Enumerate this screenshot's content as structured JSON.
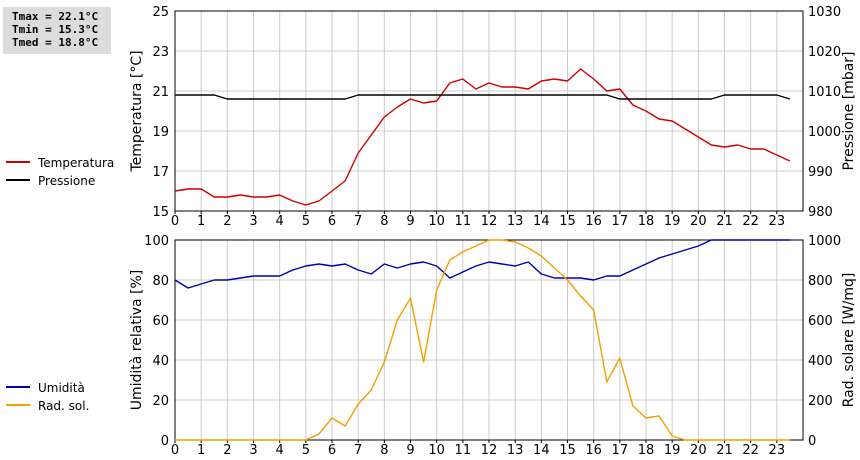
{
  "stats": {
    "tmax": "Tmax = 22.1°C",
    "tmin": "Tmin = 15.3°C",
    "tmed": "Tmed = 18.8°C"
  },
  "colors": {
    "temperature": "#cc0000",
    "pressure": "#000000",
    "humidity": "#0000aa",
    "solar": "#f0a000",
    "grid": "#cccccc"
  },
  "chart_data": [
    {
      "type": "line",
      "x_ticks": [
        "0",
        "1",
        "2",
        "3",
        "4",
        "5",
        "6",
        "7",
        "8",
        "9",
        "10",
        "11",
        "12",
        "13",
        "14",
        "15",
        "16",
        "17",
        "18",
        "19",
        "20",
        "21",
        "22",
        "23"
      ],
      "xlim": [
        0,
        24
      ],
      "ylabel_left": "Temperatura [°C]",
      "ylabel_right": "Pressione [mbar]",
      "ylim_left": [
        15,
        25
      ],
      "ylim_right": [
        980,
        1030
      ],
      "yticks_left": [
        "15",
        "17",
        "19",
        "21",
        "23",
        "25"
      ],
      "yticks_right": [
        "980",
        "990",
        "1000",
        "1010",
        "1020",
        "1030"
      ],
      "grid": true,
      "legend": "left",
      "series": [
        {
          "name": "Temperatura",
          "axis": "left",
          "x": [
            0,
            0.5,
            1,
            1.5,
            2,
            2.5,
            3,
            3.5,
            4,
            4.5,
            5,
            5.5,
            6,
            6.5,
            7,
            7.5,
            8,
            8.5,
            9,
            9.5,
            10,
            10.5,
            11,
            11.5,
            12,
            12.5,
            13,
            13.5,
            14,
            14.5,
            15,
            15.5,
            16,
            16.5,
            17,
            17.5,
            18,
            18.5,
            19,
            19.5,
            20,
            20.5,
            21,
            21.5,
            22,
            22.5,
            23,
            23.5
          ],
          "values": [
            16.0,
            16.1,
            16.1,
            15.7,
            15.7,
            15.8,
            15.7,
            15.7,
            15.8,
            15.5,
            15.3,
            15.5,
            16.0,
            16.5,
            17.9,
            18.8,
            19.7,
            20.2,
            20.6,
            20.4,
            20.5,
            21.4,
            21.6,
            21.1,
            21.4,
            21.2,
            21.2,
            21.1,
            21.5,
            21.6,
            21.5,
            22.1,
            21.6,
            21.0,
            21.1,
            20.3,
            20.0,
            19.6,
            19.5,
            19.1,
            18.7,
            18.3,
            18.2,
            18.3,
            18.1,
            18.1,
            17.8,
            17.5
          ]
        },
        {
          "name": "Pressione",
          "axis": "right",
          "x": [
            0,
            1.5,
            2,
            6.5,
            7,
            16.5,
            17,
            20.5,
            21,
            23,
            23.5
          ],
          "values": [
            1009,
            1009,
            1008,
            1008,
            1009,
            1009,
            1008,
            1008,
            1009,
            1009,
            1008
          ]
        }
      ]
    },
    {
      "type": "line",
      "x_ticks": [
        "0",
        "1",
        "2",
        "3",
        "4",
        "5",
        "6",
        "7",
        "8",
        "9",
        "10",
        "11",
        "12",
        "13",
        "14",
        "15",
        "16",
        "17",
        "18",
        "19",
        "20",
        "21",
        "22",
        "23"
      ],
      "xlim": [
        0,
        24
      ],
      "ylabel_left": "Umidità relativa [%]",
      "ylabel_right": "Rad. solare [W/mq]",
      "ylim_left": [
        0,
        100
      ],
      "ylim_right": [
        0,
        1000
      ],
      "yticks_left": [
        "0",
        "20",
        "40",
        "60",
        "80",
        "100"
      ],
      "yticks_right": [
        "0",
        "200",
        "400",
        "600",
        "800",
        "1000"
      ],
      "grid": true,
      "legend": "left",
      "series": [
        {
          "name": "Umidità",
          "axis": "left",
          "x": [
            0,
            0.5,
            1,
            1.5,
            2,
            2.5,
            3,
            3.5,
            4,
            4.5,
            5,
            5.5,
            6,
            6.5,
            7,
            7.5,
            8,
            8.5,
            9,
            9.5,
            10,
            10.5,
            11,
            11.5,
            12,
            12.5,
            13,
            13.5,
            14,
            14.5,
            15,
            15.5,
            16,
            16.5,
            17,
            17.5,
            18,
            18.5,
            19,
            19.5,
            20,
            20.5,
            21,
            21.5,
            22,
            22.5,
            23,
            23.5
          ],
          "values": [
            80,
            76,
            78,
            80,
            80,
            81,
            82,
            82,
            82,
            85,
            87,
            88,
            87,
            88,
            85,
            83,
            88,
            86,
            88,
            89,
            87,
            81,
            84,
            87,
            89,
            88,
            87,
            89,
            83,
            81,
            81,
            81,
            80,
            82,
            82,
            85,
            88,
            91,
            93,
            95,
            97,
            100,
            100,
            100,
            100,
            100,
            100,
            100
          ]
        },
        {
          "name": "Rad. sol.",
          "axis": "right",
          "x": [
            0,
            0.5,
            1,
            1.5,
            2,
            2.5,
            3,
            3.5,
            4,
            4.5,
            5,
            5.5,
            6,
            6.5,
            7,
            7.5,
            8,
            8.5,
            9,
            9.5,
            10,
            10.5,
            11,
            11.5,
            12,
            12.5,
            13,
            13.5,
            14,
            14.5,
            15,
            15.5,
            16,
            16.5,
            17,
            17.5,
            18,
            18.5,
            19,
            19.5,
            20,
            20.5,
            21,
            21.5,
            22,
            22.5,
            23,
            23.5
          ],
          "values": [
            0,
            0,
            0,
            0,
            0,
            0,
            0,
            0,
            0,
            0,
            0,
            30,
            110,
            70,
            180,
            250,
            390,
            600,
            710,
            390,
            750,
            900,
            940,
            970,
            1000,
            1000,
            990,
            960,
            920,
            860,
            800,
            720,
            650,
            290,
            410,
            170,
            110,
            120,
            20,
            0,
            0,
            0,
            0,
            0,
            0,
            0,
            0,
            0
          ]
        }
      ]
    }
  ]
}
